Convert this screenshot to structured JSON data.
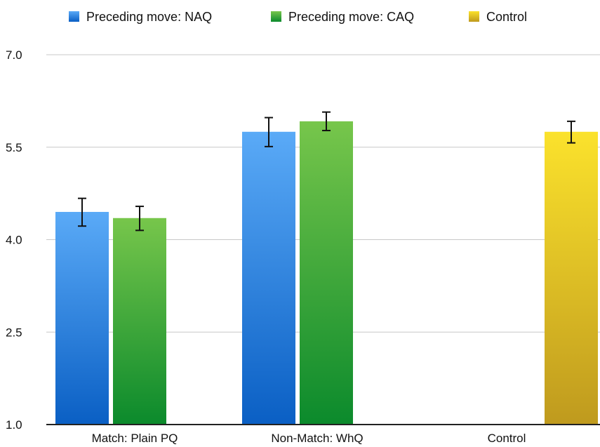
{
  "chart_data": {
    "type": "bar",
    "title": "",
    "xlabel": "",
    "ylabel": "",
    "ylim": [
      1.0,
      7.0
    ],
    "yticks": [
      "1.0",
      "2.5",
      "4.0",
      "5.5",
      "7.0"
    ],
    "grid": true,
    "legend_position": "top",
    "categories": [
      "Match: Plain PQ",
      "Non-Match: WhQ",
      "Control"
    ],
    "series": [
      {
        "name": "Preceding move: NAQ",
        "color_top": "#5aaaf7",
        "color_bottom": "#0a5fc4",
        "values": [
          4.45,
          5.75,
          null
        ],
        "error_low": [
          4.22,
          5.51,
          null
        ],
        "error_high": [
          4.67,
          5.98,
          null
        ]
      },
      {
        "name": "Preceding move: CAQ",
        "color_top": "#77c64b",
        "color_bottom": "#0b8a2c",
        "values": [
          4.35,
          5.92,
          null
        ],
        "error_low": [
          4.15,
          5.77,
          null
        ],
        "error_high": [
          4.54,
          6.07,
          null
        ]
      },
      {
        "name": "Control",
        "color_top": "#fbe22c",
        "color_bottom": "#bf9a1e",
        "values": [
          null,
          null,
          5.75
        ],
        "error_low": [
          null,
          null,
          5.57
        ],
        "error_high": [
          null,
          null,
          5.92
        ]
      }
    ]
  }
}
